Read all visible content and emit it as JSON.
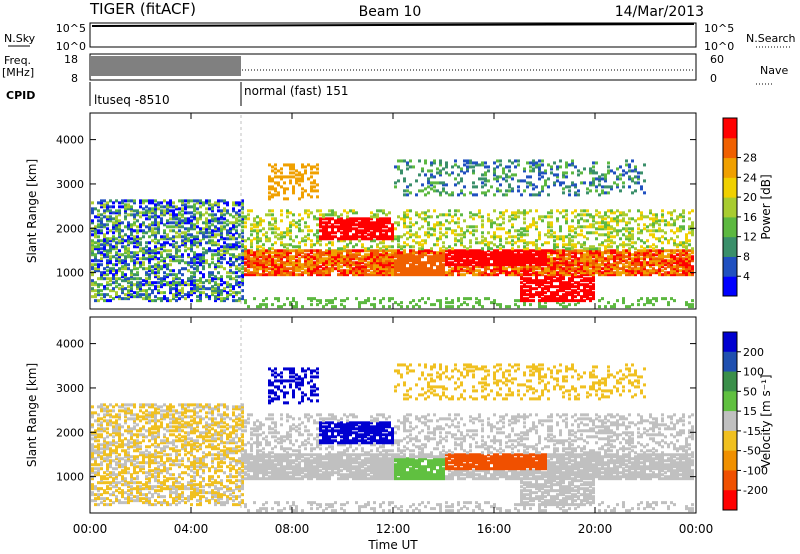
{
  "header": {
    "title": "TIGER (fitACF)",
    "beam": "Beam 10",
    "date": "14/Mar/2013"
  },
  "status_panel": {
    "nsky_label": "N.Sky",
    "nsky_ticks": [
      "10^5",
      "10^0"
    ],
    "nsearch_label": "N.Search",
    "freq_label_line1": "Freq.",
    "freq_label_line2": "[MHz]",
    "freq_ticks": [
      "18",
      "8"
    ],
    "nave_ticks": [
      "60",
      "0"
    ],
    "nave_label": "Nave",
    "cpid_label": "CPID",
    "cpid_segments": [
      {
        "label": "ltuseq -8510",
        "start_hour": 0,
        "end_hour": 6
      },
      {
        "label": "normal (fast) 151",
        "start_hour": 6,
        "end_hour": 24
      }
    ]
  },
  "chart_data": [
    {
      "type": "heatmap",
      "name": "power",
      "ylabel": "Slant Range [km]",
      "ylim": [
        180,
        4600
      ],
      "yticks": [
        "1000",
        "2000",
        "3000",
        "4000"
      ],
      "colorbar": {
        "label": "Power [dB]",
        "range": [
          0,
          32
        ],
        "ticks": [
          "4",
          "8",
          "12",
          "16",
          "20",
          "24",
          "28"
        ],
        "colors": [
          "#0000ff",
          "#2050c0",
          "#3a8f6a",
          "#5cb840",
          "#a8cc30",
          "#f0d000",
          "#f0a000",
          "#f06000",
          "#ff0000"
        ]
      }
    },
    {
      "type": "heatmap",
      "name": "velocity",
      "ylabel": "Slant Range [km]",
      "ylim": [
        180,
        4600
      ],
      "yticks": [
        "1000",
        "2000",
        "3000",
        "4000"
      ],
      "colorbar": {
        "label": "Velocity [m s⁻¹]",
        "ticks": [
          "200",
          "100",
          "50",
          "15",
          "-15",
          "-50",
          "-100",
          "-200"
        ],
        "colors": [
          "#0000d0",
          "#2050b0",
          "#3a8f4a",
          "#60c040",
          "#c0c0c0",
          "#f0c020",
          "#f09000",
          "#f05000",
          "#ff0000"
        ]
      }
    }
  ],
  "x_axis": {
    "label": "Time UT",
    "range_hours": [
      0,
      24
    ],
    "ticks": [
      "00:00",
      "04:00",
      "08:00",
      "12:00",
      "16:00",
      "20:00",
      "00:00"
    ]
  }
}
